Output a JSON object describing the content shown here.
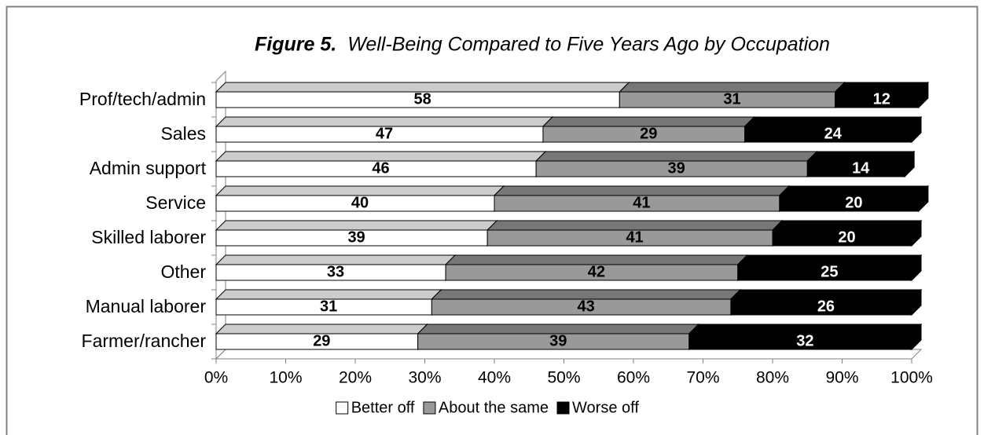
{
  "chart_data": {
    "type": "stacked-bar-3d",
    "orientation": "horizontal",
    "figure_label": "Figure 5.",
    "title": "Well-Being Compared to Five Years Ago by Occupation",
    "categories": [
      "Prof/tech/admin",
      "Sales",
      "Admin support",
      "Service",
      "Skilled laborer",
      "Other",
      "Manual laborer",
      "Farmer/rancher"
    ],
    "series": [
      {
        "name": "Better off",
        "color": "#ffffff",
        "top_color": "#cccccc",
        "label_color": "#000000",
        "values": [
          58,
          47,
          46,
          40,
          39,
          33,
          31,
          29
        ]
      },
      {
        "name": "About the same",
        "color": "#999999",
        "top_color": "#777777",
        "label_color": "#000000",
        "values": [
          31,
          29,
          39,
          41,
          41,
          42,
          43,
          39
        ]
      },
      {
        "name": "Worse off",
        "color": "#000000",
        "top_color": "#000000",
        "label_color": "#ffffff",
        "values": [
          12,
          24,
          14,
          20,
          20,
          25,
          26,
          32
        ]
      }
    ],
    "xlim": [
      0,
      100
    ],
    "xticks": [
      {
        "value": 0,
        "label": "0%"
      },
      {
        "value": 10,
        "label": "10%"
      },
      {
        "value": 20,
        "label": "20%"
      },
      {
        "value": 30,
        "label": "30%"
      },
      {
        "value": 40,
        "label": "40%"
      },
      {
        "value": 50,
        "label": "50%"
      },
      {
        "value": 60,
        "label": "60%"
      },
      {
        "value": 70,
        "label": "70%"
      },
      {
        "value": 80,
        "label": "80%"
      },
      {
        "value": 90,
        "label": "90%"
      },
      {
        "value": 100,
        "label": "100%"
      }
    ],
    "legend": "bottom"
  }
}
